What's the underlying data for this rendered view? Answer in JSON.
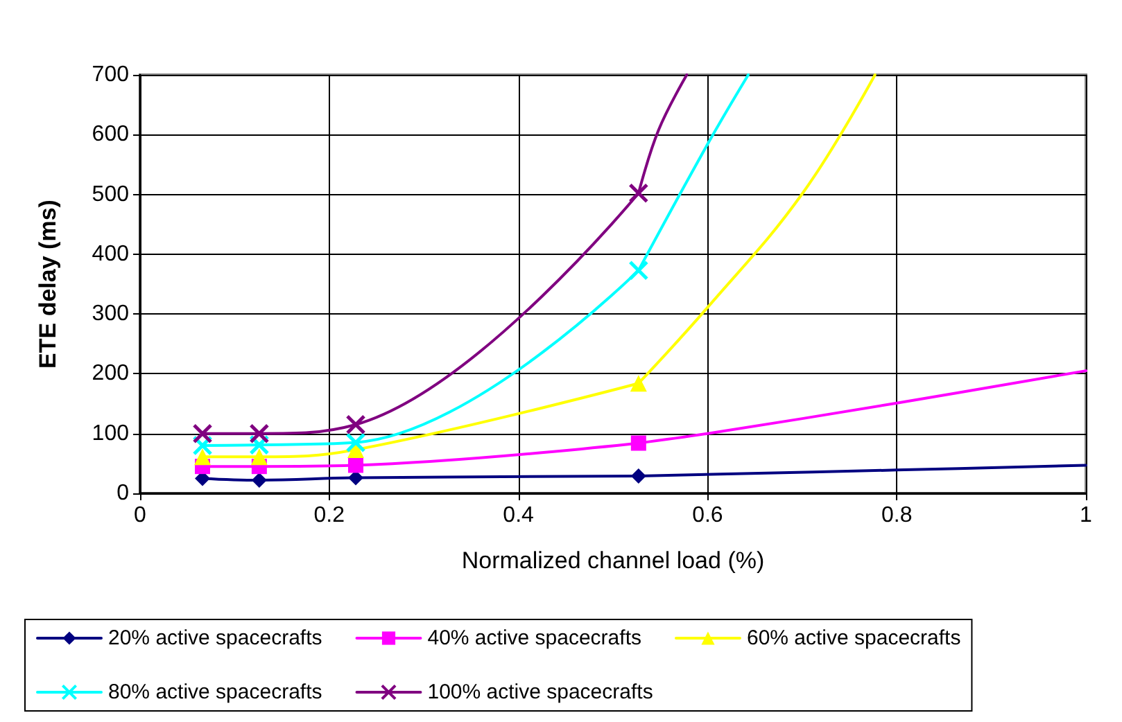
{
  "chart_data": {
    "type": "line",
    "xlabel": "Normalized channel load (%)",
    "ylabel": "ETE delay (ms)",
    "x": [
      0.066,
      0.126,
      0.228,
      0.527
    ],
    "series": [
      {
        "name": "20% active spacecrafts",
        "color": "#000080",
        "marker": "diamond",
        "values": [
          25,
          22,
          26,
          29
        ]
      },
      {
        "name": "40% active spacecrafts",
        "color": "#ff00ff",
        "marker": "square",
        "values": [
          45,
          45,
          47,
          84
        ]
      },
      {
        "name": "60% active spacecrafts",
        "color": "#ffff00",
        "marker": "triangle",
        "values": [
          61,
          61,
          73,
          184
        ]
      },
      {
        "name": "80% active spacecrafts",
        "color": "#00ffff",
        "marker": "cross",
        "values": [
          80,
          81,
          85,
          373
        ]
      },
      {
        "name": "100% active spacecrafts",
        "color": "#800080",
        "marker": "cross",
        "values": [
          100,
          100,
          115,
          502
        ]
      },
      {
        "type": "line",
        "color": "#000080",
        "marker": "none",
        "x": [
          0.527,
          0.8,
          1.0
        ],
        "values": [
          29,
          39,
          47
        ]
      },
      {
        "type": "line",
        "color": "#ff00ff",
        "marker": "none",
        "x": [
          0.527,
          0.6,
          0.8,
          1.0
        ],
        "values": [
          84,
          100,
          151,
          205
        ]
      },
      {
        "type": "line",
        "color": "#ffff00",
        "marker": "none",
        "x": [
          0.527,
          0.6,
          0.7,
          0.777
        ],
        "values": [
          184,
          311,
          501,
          700
        ]
      },
      {
        "type": "line",
        "color": "#00ffff",
        "marker": "none",
        "x": [
          0.527,
          0.6,
          0.643
        ],
        "values": [
          373,
          584,
          700
        ]
      },
      {
        "type": "line",
        "color": "#800080",
        "marker": "none",
        "x": [
          0.527,
          0.548,
          0.578
        ],
        "values": [
          502,
          607,
          700
        ]
      }
    ],
    "xlim": [
      0,
      1
    ],
    "xticks": [
      0,
      0.2,
      0.4,
      0.6,
      0.8,
      1
    ],
    "ylim": [
      0,
      700
    ],
    "yticks": [
      0,
      100,
      200,
      300,
      400,
      500,
      600,
      700
    ],
    "grid": true,
    "legend": "bottom"
  }
}
